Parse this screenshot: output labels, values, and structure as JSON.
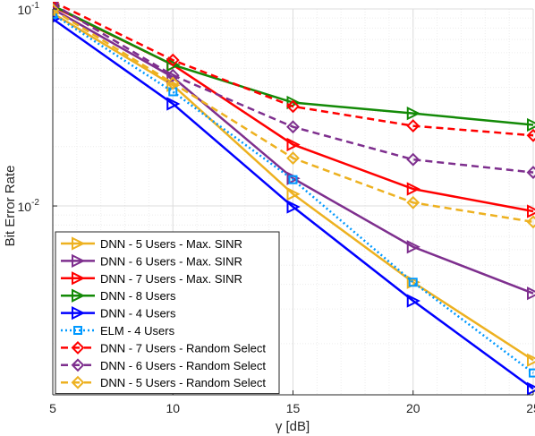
{
  "chart_data": {
    "type": "line",
    "xlabel": "γ [dB]",
    "ylabel": "Bit Error Rate",
    "x": [
      5,
      10,
      15,
      20,
      25
    ],
    "xlim": [
      5,
      25
    ],
    "ylim": [
      0.0011,
      0.1
    ],
    "yscale": "log",
    "grid": true,
    "minor_grid": true,
    "legend_position": "bottom-left",
    "x_ticks": [
      "5",
      "10",
      "15",
      "20",
      "25"
    ],
    "y_ticks": [
      {
        "value": 0.1,
        "base": "10",
        "exp": "-1"
      },
      {
        "value": 0.01,
        "base": "10",
        "exp": "-2"
      }
    ],
    "series": [
      {
        "name": "DNN - 5 Users - Max. SINR",
        "color": "#EDB120",
        "line": "solid",
        "marker": "triangle-right",
        "values": [
          0.095,
          0.041,
          0.0115,
          0.0041,
          0.00165
        ]
      },
      {
        "name": "DNN - 6 Users - Max. SINR",
        "color": "#7E2F8E",
        "line": "solid",
        "marker": "triangle-right",
        "values": [
          0.1,
          0.045,
          0.0138,
          0.0062,
          0.0036
        ]
      },
      {
        "name": "DNN - 7 Users - Max. SINR",
        "color": "#FF0000",
        "line": "solid",
        "marker": "triangle-right",
        "values": [
          0.103,
          0.052,
          0.0205,
          0.0122,
          0.0094
        ]
      },
      {
        "name": "DNN - 8 Users",
        "color": "#138A07",
        "line": "solid",
        "marker": "triangle-right",
        "values": [
          0.104,
          0.052,
          0.0335,
          0.0295,
          0.0258
        ]
      },
      {
        "name": "DNN - 4 Users",
        "color": "#0000FF",
        "line": "solid",
        "marker": "triangle-right",
        "values": [
          0.089,
          0.033,
          0.0099,
          0.0033,
          0.00118
        ]
      },
      {
        "name": "ELM - 4 Users",
        "color": "#0099FF",
        "line": "dotted",
        "marker": "square",
        "values": [
          0.094,
          0.038,
          0.0136,
          0.0041,
          0.00142
        ]
      },
      {
        "name": "DNN - 7 Users - Random Select",
        "color": "#FF0000",
        "line": "dashed",
        "marker": "diamond",
        "values": [
          0.109,
          0.055,
          0.032,
          0.0255,
          0.0228
        ]
      },
      {
        "name": "DNN - 6 Users - Random Select",
        "color": "#7E2F8E",
        "line": "dashed",
        "marker": "diamond",
        "values": [
          0.106,
          0.046,
          0.0252,
          0.0172,
          0.0148
        ]
      },
      {
        "name": "DNN - 5 Users - Random Select",
        "color": "#EDB120",
        "line": "dashed",
        "marker": "diamond",
        "values": [
          0.099,
          0.042,
          0.0175,
          0.0104,
          0.0083
        ]
      }
    ]
  }
}
